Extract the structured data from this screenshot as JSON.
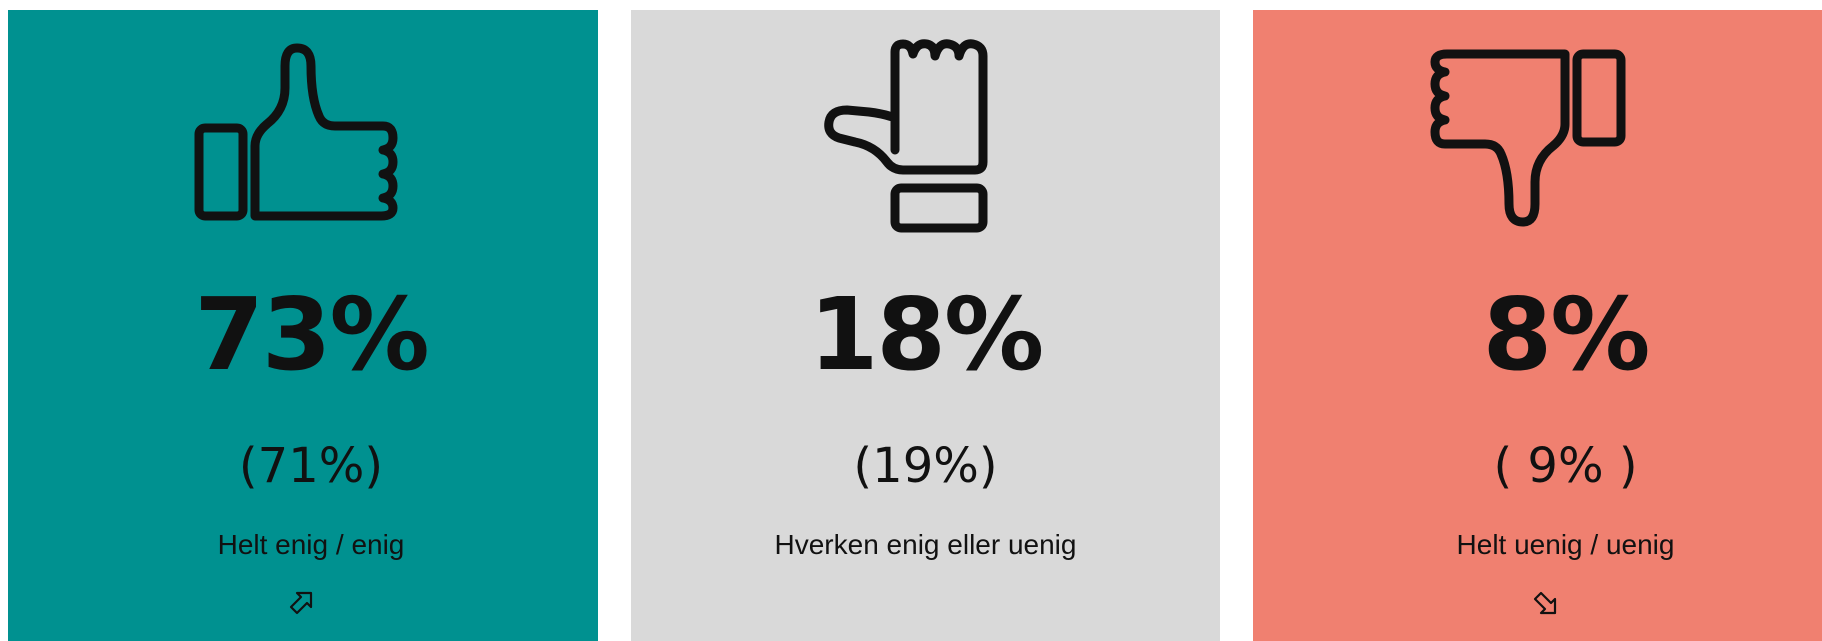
{
  "panels": [
    {
      "id": "agree",
      "percent": "73%",
      "previous": "(71%)",
      "label": "Helt enig / enig",
      "icon": "thumbs-up-icon",
      "trend_icon": "arrow-up-right-icon",
      "color": "#009190"
    },
    {
      "id": "neutral",
      "percent": "18%",
      "previous": "(19%)",
      "label": "Hverken enig eller uenig",
      "icon": "thumb-sideways-icon",
      "trend_icon": "",
      "color": "#d9d9d9"
    },
    {
      "id": "disagree",
      "percent": "8%",
      "previous": "( 9% )",
      "label": "Helt uenig / uenig",
      "icon": "thumbs-down-icon",
      "trend_icon": "arrow-down-right-icon",
      "color": "#f08070"
    }
  ]
}
